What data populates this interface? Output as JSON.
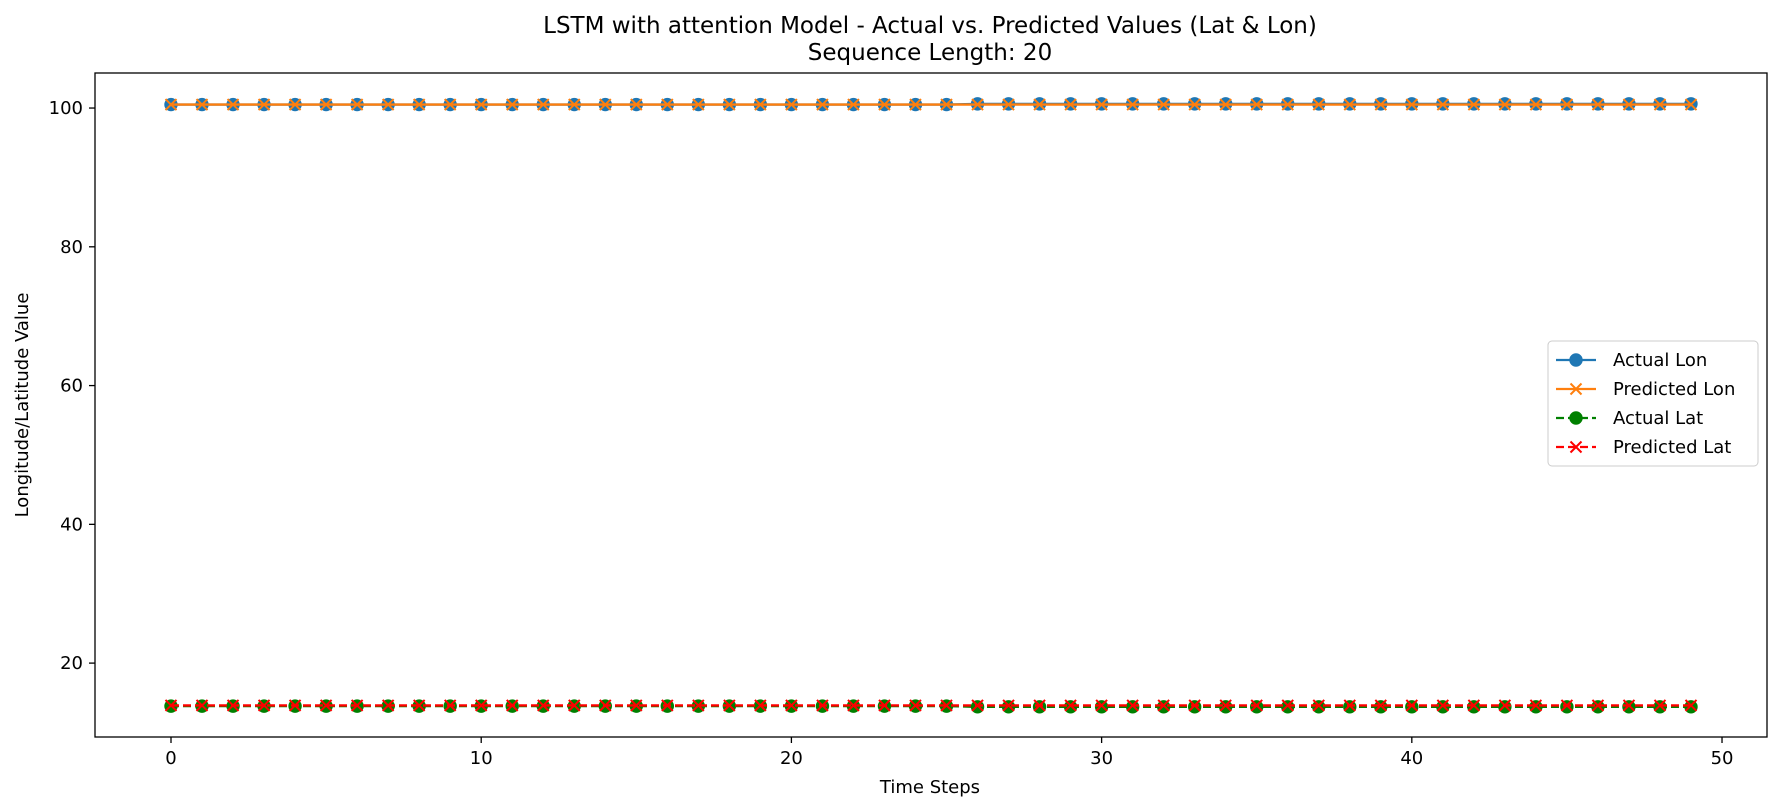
{
  "chart_data": {
    "type": "line",
    "title": "LSTM with attention Model - Actual vs. Predicted Values (Lat & Lon)",
    "subtitle": "Sequence Length: 20",
    "xlabel": "Time Steps",
    "ylabel": "Longitude/Latitude Value",
    "xlim": [
      -2.45,
      51.45
    ],
    "ylim": [
      9.35,
      105.05
    ],
    "x_ticks": [
      0,
      10,
      20,
      30,
      40,
      50
    ],
    "y_ticks": [
      20,
      40,
      60,
      80,
      100
    ],
    "grid": false,
    "legend_position": "center-right",
    "x": [
      0,
      1,
      2,
      3,
      4,
      5,
      6,
      7,
      8,
      9,
      10,
      11,
      12,
      13,
      14,
      15,
      16,
      17,
      18,
      19,
      20,
      21,
      22,
      23,
      24,
      25,
      26,
      27,
      28,
      29,
      30,
      31,
      32,
      33,
      34,
      35,
      36,
      37,
      38,
      39,
      40,
      41,
      42,
      43,
      44,
      45,
      46,
      47,
      48,
      49
    ],
    "series": [
      {
        "name": "Actual Lon",
        "color": "#1f77b4",
        "line_style": "solid",
        "marker": "circle",
        "values": [
          100.5,
          100.5,
          100.5,
          100.5,
          100.5,
          100.5,
          100.5,
          100.5,
          100.5,
          100.5,
          100.5,
          100.5,
          100.5,
          100.5,
          100.5,
          100.5,
          100.5,
          100.5,
          100.5,
          100.5,
          100.5,
          100.5,
          100.5,
          100.5,
          100.5,
          100.5,
          100.6,
          100.6,
          100.6,
          100.6,
          100.6,
          100.6,
          100.6,
          100.6,
          100.6,
          100.6,
          100.6,
          100.6,
          100.6,
          100.6,
          100.6,
          100.6,
          100.6,
          100.6,
          100.6,
          100.6,
          100.6,
          100.6,
          100.6,
          100.6
        ]
      },
      {
        "name": "Predicted Lon",
        "color": "#ff7f0e",
        "line_style": "solid",
        "marker": "x",
        "values": [
          100.5,
          100.5,
          100.5,
          100.5,
          100.5,
          100.5,
          100.5,
          100.5,
          100.5,
          100.5,
          100.5,
          100.5,
          100.5,
          100.5,
          100.5,
          100.5,
          100.5,
          100.5,
          100.5,
          100.5,
          100.5,
          100.5,
          100.5,
          100.5,
          100.5,
          100.5,
          100.5,
          100.5,
          100.5,
          100.5,
          100.5,
          100.5,
          100.5,
          100.5,
          100.5,
          100.5,
          100.5,
          100.5,
          100.5,
          100.5,
          100.5,
          100.5,
          100.5,
          100.5,
          100.5,
          100.5,
          100.5,
          100.5,
          100.5,
          100.5
        ]
      },
      {
        "name": "Actual Lat",
        "color": "#008000",
        "line_style": "dashed",
        "marker": "circle",
        "values": [
          13.8,
          13.8,
          13.8,
          13.8,
          13.8,
          13.8,
          13.8,
          13.8,
          13.8,
          13.8,
          13.8,
          13.8,
          13.8,
          13.8,
          13.8,
          13.8,
          13.8,
          13.8,
          13.8,
          13.8,
          13.8,
          13.8,
          13.8,
          13.8,
          13.8,
          13.8,
          13.7,
          13.7,
          13.7,
          13.7,
          13.7,
          13.7,
          13.7,
          13.7,
          13.7,
          13.7,
          13.7,
          13.7,
          13.7,
          13.7,
          13.7,
          13.7,
          13.7,
          13.7,
          13.7,
          13.7,
          13.7,
          13.7,
          13.7,
          13.7
        ]
      },
      {
        "name": "Predicted Lat",
        "color": "#ff0000",
        "line_style": "dashed",
        "marker": "x",
        "values": [
          13.9,
          13.9,
          13.9,
          13.9,
          13.9,
          13.9,
          13.9,
          13.9,
          13.9,
          13.9,
          13.9,
          13.9,
          13.9,
          13.9,
          13.9,
          13.9,
          13.9,
          13.9,
          13.9,
          13.9,
          13.9,
          13.9,
          13.9,
          13.9,
          13.9,
          13.9,
          13.9,
          13.9,
          13.9,
          13.9,
          13.9,
          13.9,
          13.9,
          13.9,
          13.9,
          13.9,
          13.9,
          13.9,
          13.9,
          13.9,
          13.9,
          13.9,
          13.9,
          13.9,
          13.9,
          13.9,
          13.9,
          13.9,
          13.9,
          13.9
        ]
      }
    ]
  }
}
